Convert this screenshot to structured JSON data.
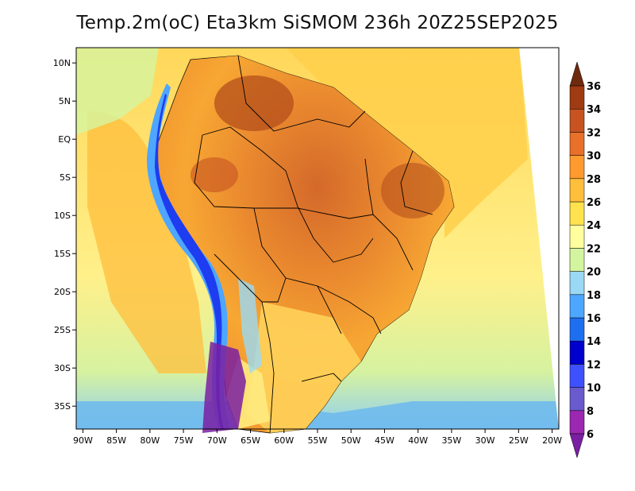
{
  "title": "Temp.2m(oC) Eta3km SiSMOM 236h 20Z25SEP2025",
  "map": {
    "lon_min": -91,
    "lon_max": -19,
    "lat_min": -38,
    "lat_max": 12,
    "lon_labels": [
      "90W",
      "85W",
      "80W",
      "75W",
      "70W",
      "65W",
      "60W",
      "55W",
      "50W",
      "45W",
      "40W",
      "35W",
      "30W",
      "25W",
      "20W"
    ],
    "lat_labels": [
      "10N",
      "5N",
      "EQ",
      "5S",
      "10S",
      "15S",
      "20S",
      "25S",
      "30S",
      "35S"
    ]
  },
  "colorbar": {
    "labels": [
      "6",
      "8",
      "10",
      "12",
      "14",
      "16",
      "18",
      "20",
      "22",
      "24",
      "26",
      "28",
      "30",
      "32",
      "34",
      "36"
    ],
    "colors": [
      "#7a1fa2",
      "#9c27b0",
      "#6a5acd",
      "#3f51ff",
      "#0000cd",
      "#1e6ff0",
      "#4da6ff",
      "#9ad9f5",
      "#d4f5a0",
      "#ffff9e",
      "#ffe24d",
      "#ffbe3c",
      "#ff9a2e",
      "#e8702a",
      "#c75321",
      "#a03a12",
      "#6e2a0f"
    ],
    "unit": "oC"
  }
}
